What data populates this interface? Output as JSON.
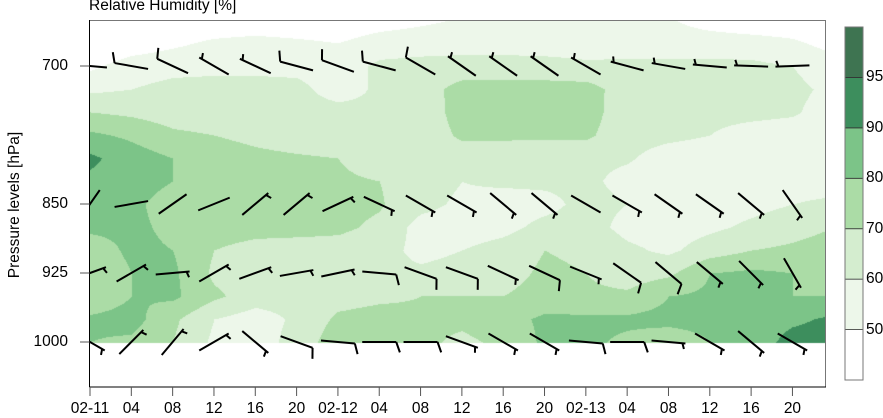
{
  "chart_data": {
    "type": "heatmap",
    "subtype": "filled-contour time-pressure cross-section with wind barbs",
    "title": "Relative Humidity [%]",
    "xlabel": "",
    "ylabel": "Pressure levels [hPa]",
    "ylim": [
      650,
      1050
    ],
    "y_reversed": true,
    "grid": false,
    "x_ticks": [
      {
        "time": "02-11 00",
        "label": "02-11"
      },
      {
        "time": "02-11 04",
        "label": "04"
      },
      {
        "time": "02-11 08",
        "label": "08"
      },
      {
        "time": "02-11 12",
        "label": "12"
      },
      {
        "time": "02-11 16",
        "label": "16"
      },
      {
        "time": "02-11 20",
        "label": "20"
      },
      {
        "time": "02-12 00",
        "label": "02-12"
      },
      {
        "time": "02-12 04",
        "label": "04"
      },
      {
        "time": "02-12 08",
        "label": "08"
      },
      {
        "time": "02-12 12",
        "label": "12"
      },
      {
        "time": "02-12 16",
        "label": "16"
      },
      {
        "time": "02-12 20",
        "label": "20"
      },
      {
        "time": "02-13 00",
        "label": "02-13"
      },
      {
        "time": "02-13 04",
        "label": "04"
      },
      {
        "time": "02-13 08",
        "label": "08"
      },
      {
        "time": "02-13 12",
        "label": "12"
      },
      {
        "time": "02-13 16",
        "label": "16"
      },
      {
        "time": "02-13 20",
        "label": "20"
      }
    ],
    "y_ticks": [
      700,
      850,
      925,
      1000
    ],
    "colorbar": {
      "breaks": [
        50,
        60,
        70,
        80,
        90,
        95
      ],
      "labels": [
        "50",
        "60",
        "70",
        "80",
        "90",
        "95"
      ],
      "colors": [
        "#ffffff",
        "#edf7ea",
        "#d4edcf",
        "#abdca6",
        "#7cc488",
        "#3d8e5d",
        "#3e7451"
      ],
      "position": "right"
    },
    "rh": {
      "times": [
        "02-11 00",
        "02-11 04",
        "02-11 08",
        "02-11 12",
        "02-11 16",
        "02-11 20",
        "02-12 00",
        "02-12 04",
        "02-12 08",
        "02-12 12",
        "02-12 16",
        "02-12 20",
        "02-13 00",
        "02-13 04",
        "02-13 08",
        "02-13 12",
        "02-13 16",
        "02-13 20",
        "02-14 00"
      ],
      "levels_hpa": [
        650,
        675,
        700,
        725,
        750,
        775,
        800,
        825,
        850,
        875,
        900,
        925,
        950,
        975,
        1000
      ],
      "values": [
        [
          42,
          42,
          42,
          42,
          42,
          42,
          42,
          45,
          48,
          51,
          51,
          51,
          51,
          51,
          51,
          45,
          42,
          42,
          42
        ],
        [
          40,
          44,
          48,
          52,
          54,
          52,
          50,
          55,
          56,
          56,
          56,
          55,
          55,
          56,
          56,
          56,
          55,
          52,
          46
        ],
        [
          48,
          55,
          57,
          58,
          58,
          57,
          55,
          62,
          63,
          64,
          64,
          64,
          62,
          62,
          62,
          62,
          62,
          60,
          55
        ],
        [
          58,
          60,
          63,
          63,
          63,
          63,
          55,
          62,
          65,
          74,
          74,
          74,
          74,
          65,
          62,
          62,
          62,
          62,
          58
        ],
        [
          70,
          68,
          65,
          64,
          64,
          64,
          64,
          62,
          63,
          75,
          75,
          75,
          75,
          63,
          62,
          62,
          62,
          61,
          56
        ],
        [
          82,
          78,
          72,
          70,
          68,
          66,
          65,
          63,
          63,
          72,
          72,
          72,
          72,
          63,
          62,
          60,
          57,
          56,
          55
        ],
        [
          92,
          85,
          80,
          74,
          72,
          71,
          70,
          64,
          63,
          64,
          63,
          62,
          62,
          61,
          56,
          55,
          55,
          55,
          55
        ],
        [
          88,
          84,
          80,
          75,
          74,
          73,
          72,
          70,
          65,
          60,
          62,
          62,
          62,
          57,
          54,
          54,
          55,
          56,
          56
        ],
        [
          84,
          82,
          76,
          74,
          74,
          74,
          73,
          71,
          63,
          58,
          55,
          57,
          63,
          60,
          55,
          55,
          57,
          60,
          62
        ],
        [
          82,
          82,
          78,
          74,
          73,
          73,
          72,
          68,
          56,
          55,
          57,
          63,
          64,
          57,
          55,
          58,
          62,
          66,
          70
        ],
        [
          75,
          82,
          80,
          70,
          67,
          66,
          66,
          64,
          57,
          60,
          64,
          70,
          68,
          62,
          58,
          65,
          70,
          72,
          75
        ],
        [
          72,
          80,
          82,
          68,
          64,
          63,
          63,
          62,
          62,
          64,
          66,
          72,
          70,
          65,
          68,
          80,
          82,
          80,
          78
        ],
        [
          72,
          80,
          82,
          72,
          65,
          64,
          66,
          68,
          70,
          70,
          70,
          74,
          72,
          72,
          80,
          82,
          82,
          80,
          80
        ],
        [
          82,
          84,
          72,
          60,
          55,
          62,
          72,
          74,
          72,
          72,
          76,
          82,
          82,
          82,
          83,
          83,
          84,
          88,
          92
        ],
        [
          80,
          78,
          70,
          58,
          55,
          64,
          76,
          80,
          72,
          68,
          72,
          82,
          82,
          78,
          74,
          80,
          84,
          94,
          94
        ]
      ]
    },
    "wind_barbs": {
      "times": [
        "02-11 00",
        "02-11 04",
        "02-11 08",
        "02-11 12",
        "02-11 16",
        "02-11 20",
        "02-12 00",
        "02-12 04",
        "02-12 08",
        "02-12 12",
        "02-12 16",
        "02-12 20",
        "02-13 00",
        "02-13 04",
        "02-13 08",
        "02-13 12",
        "02-13 16",
        "02-13 20"
      ],
      "units": "kt",
      "levels": [
        {
          "level": 700,
          "dir": [
            275,
            280,
            295,
            300,
            295,
            285,
            290,
            285,
            300,
            305,
            305,
            305,
            300,
            285,
            280,
            275,
            272,
            268
          ],
          "speed": [
            10,
            10,
            10,
            5,
            5,
            10,
            10,
            10,
            10,
            5,
            5,
            5,
            5,
            5,
            5,
            5,
            5,
            5
          ]
        },
        {
          "level": 850,
          "dir": [
            35,
            80,
            55,
            68,
            50,
            50,
            65,
            115,
            120,
            120,
            130,
            130,
            120,
            120,
            125,
            125,
            130,
            145
          ],
          "speed": [
            3,
            3,
            3,
            3,
            5,
            5,
            5,
            5,
            5,
            5,
            5,
            5,
            3,
            5,
            5,
            5,
            5,
            5
          ]
        },
        {
          "level": 925,
          "dir": [
            70,
            60,
            85,
            60,
            70,
            80,
            78,
            95,
            110,
            110,
            115,
            115,
            112,
            125,
            130,
            130,
            135,
            150
          ],
          "speed": [
            5,
            5,
            5,
            5,
            5,
            5,
            5,
            10,
            10,
            10,
            5,
            10,
            5,
            10,
            10,
            5,
            5,
            5
          ]
        },
        {
          "level": 1000,
          "dir": [
            120,
            45,
            40,
            60,
            130,
            110,
            95,
            90,
            90,
            110,
            120,
            120,
            95,
            90,
            95,
            120,
            130,
            120
          ],
          "speed": [
            5,
            5,
            5,
            5,
            5,
            10,
            10,
            10,
            10,
            5,
            5,
            5,
            10,
            10,
            5,
            5,
            5,
            5
          ]
        }
      ]
    }
  }
}
